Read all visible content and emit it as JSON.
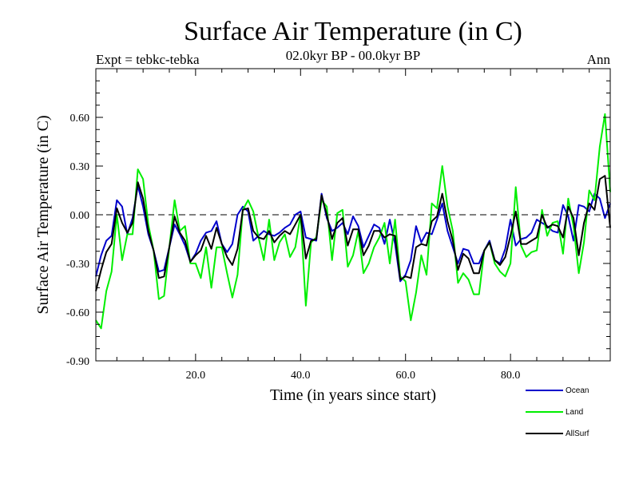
{
  "chart_data": {
    "type": "line",
    "title": "Surface Air Temperature (in C)",
    "subtitle_left": "Expt = tebkc-tebka",
    "subtitle_center": "02.0kyr BP - 00.0kyr BP",
    "subtitle_right": "Ann",
    "xlabel": "Time (in years since start)",
    "ylabel": "Surface Air Temperature (in C)",
    "xlim": [
      1,
      99
    ],
    "ylim": [
      -0.9,
      0.9
    ],
    "xticks": [
      20,
      40,
      60,
      80
    ],
    "xtick_labels": [
      "20.0",
      "40.0",
      "60.0",
      "80.0"
    ],
    "yticks": [
      -0.9,
      -0.6,
      -0.3,
      0.0,
      0.3,
      0.6
    ],
    "ytick_labels": [
      "-0.90",
      "-0.60",
      "-0.30",
      "0.00",
      "0.30",
      "0.60"
    ],
    "zero_line": true,
    "legend_position": "bottom-right",
    "series": [
      {
        "name": "Ocean",
        "color": "#0000cc",
        "values": [
          -0.38,
          -0.25,
          -0.16,
          -0.13,
          0.09,
          0.05,
          -0.12,
          -0.02,
          0.18,
          0.05,
          -0.12,
          -0.22,
          -0.35,
          -0.34,
          -0.2,
          -0.06,
          -0.12,
          -0.19,
          -0.29,
          -0.24,
          -0.16,
          -0.11,
          -0.1,
          -0.04,
          -0.18,
          -0.23,
          -0.18,
          0.0,
          0.05,
          0.02,
          -0.16,
          -0.13,
          -0.1,
          -0.12,
          -0.13,
          -0.11,
          -0.08,
          -0.06,
          0.0,
          0.02,
          -0.14,
          -0.15,
          -0.16,
          0.13,
          -0.02,
          -0.1,
          -0.08,
          -0.05,
          -0.12,
          -0.01,
          -0.07,
          -0.2,
          -0.13,
          -0.06,
          -0.08,
          -0.18,
          -0.03,
          -0.18,
          -0.41,
          -0.37,
          -0.28,
          -0.07,
          -0.17,
          -0.11,
          -0.12,
          -0.03,
          0.07,
          -0.1,
          -0.2,
          -0.3,
          -0.21,
          -0.22,
          -0.3,
          -0.3,
          -0.22,
          -0.16,
          -0.28,
          -0.3,
          -0.21,
          -0.03,
          -0.19,
          -0.15,
          -0.14,
          -0.11,
          -0.03,
          -0.05,
          -0.07,
          -0.1,
          -0.11,
          0.06,
          -0.01,
          -0.16,
          0.06,
          0.05,
          0.02,
          0.13,
          0.1,
          -0.02,
          0.07
        ]
      },
      {
        "name": "Land",
        "color": "#00ee00",
        "values": [
          -0.65,
          -0.7,
          -0.47,
          -0.35,
          0.0,
          -0.28,
          -0.12,
          -0.12,
          0.28,
          0.22,
          -0.06,
          -0.22,
          -0.52,
          -0.5,
          -0.2,
          0.09,
          -0.1,
          -0.07,
          -0.3,
          -0.3,
          -0.39,
          -0.2,
          -0.45,
          -0.2,
          -0.2,
          -0.36,
          -0.51,
          -0.37,
          0.03,
          0.09,
          0.02,
          -0.14,
          -0.28,
          -0.03,
          -0.28,
          -0.17,
          -0.12,
          -0.26,
          -0.2,
          0.0,
          -0.56,
          -0.17,
          -0.14,
          0.09,
          0.05,
          -0.28,
          0.01,
          0.03,
          -0.32,
          -0.25,
          -0.1,
          -0.36,
          -0.3,
          -0.2,
          -0.14,
          -0.05,
          -0.3,
          -0.03,
          -0.38,
          -0.41,
          -0.65,
          -0.48,
          -0.25,
          -0.37,
          0.07,
          0.04,
          0.3,
          0.05,
          -0.1,
          -0.42,
          -0.36,
          -0.4,
          -0.49,
          -0.49,
          -0.22,
          -0.17,
          -0.3,
          -0.35,
          -0.38,
          -0.3,
          0.17,
          -0.19,
          -0.26,
          -0.23,
          -0.22,
          0.03,
          -0.13,
          -0.05,
          -0.04,
          -0.24,
          0.1,
          -0.07,
          -0.36,
          -0.17,
          0.15,
          0.09,
          0.42,
          0.62,
          0.14
        ]
      },
      {
        "name": "AllSurf",
        "color": "#000000",
        "values": [
          -0.47,
          -0.34,
          -0.23,
          -0.18,
          0.04,
          -0.05,
          -0.11,
          -0.05,
          0.2,
          0.1,
          -0.1,
          -0.22,
          -0.39,
          -0.38,
          -0.2,
          -0.01,
          -0.11,
          -0.16,
          -0.29,
          -0.25,
          -0.22,
          -0.13,
          -0.21,
          -0.08,
          -0.18,
          -0.26,
          -0.31,
          -0.21,
          0.03,
          0.04,
          -0.1,
          -0.14,
          -0.15,
          -0.1,
          -0.17,
          -0.13,
          -0.1,
          -0.12,
          -0.06,
          0.0,
          -0.27,
          -0.16,
          -0.15,
          0.12,
          0.0,
          -0.15,
          -0.05,
          -0.02,
          -0.19,
          -0.09,
          -0.09,
          -0.25,
          -0.19,
          -0.1,
          -0.1,
          -0.14,
          -0.12,
          -0.13,
          -0.4,
          -0.38,
          -0.39,
          -0.2,
          -0.18,
          -0.19,
          -0.04,
          -0.01,
          0.13,
          -0.04,
          -0.16,
          -0.34,
          -0.24,
          -0.27,
          -0.36,
          -0.36,
          -0.22,
          -0.17,
          -0.28,
          -0.31,
          -0.26,
          -0.13,
          0.02,
          -0.18,
          -0.18,
          -0.16,
          -0.14,
          0.0,
          -0.08,
          -0.06,
          -0.07,
          -0.14,
          0.05,
          -0.02,
          -0.25,
          -0.05,
          0.07,
          0.03,
          0.22,
          0.24,
          -0.08
        ]
      }
    ]
  }
}
